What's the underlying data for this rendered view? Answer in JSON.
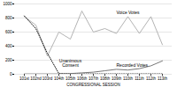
{
  "chart_data": {
    "type": "line",
    "categories": [
      "101st",
      "102nd",
      "103rd",
      "104th",
      "105th",
      "106th",
      "107th",
      "108th",
      "109th",
      "110th",
      "111th",
      "112th",
      "113th"
    ],
    "series": [
      {
        "name": "Voice Votes",
        "color": "#aaaaaa",
        "line_style": "solid",
        "values": [
          820,
          700,
          260,
          600,
          500,
          900,
          600,
          650,
          580,
          820,
          580,
          820,
          420
        ]
      },
      {
        "name": "Unanimous\nConsent",
        "color": "#111111",
        "line_style": "dotted",
        "values": [
          830,
          650,
          300,
          10,
          5,
          5,
          5,
          5,
          5,
          5,
          5,
          5,
          5
        ]
      },
      {
        "name": "Recorded Votes",
        "color": "#666666",
        "line_style": "solid",
        "values": [
          5,
          5,
          5,
          5,
          10,
          20,
          30,
          50,
          70,
          60,
          80,
          120,
          190
        ]
      }
    ],
    "xlabel": "CONGRESSIONAL SESSION",
    "ylim": [
      0,
      1000
    ],
    "yticks": [
      0,
      200,
      400,
      600,
      800,
      1000
    ],
    "grid": true
  }
}
